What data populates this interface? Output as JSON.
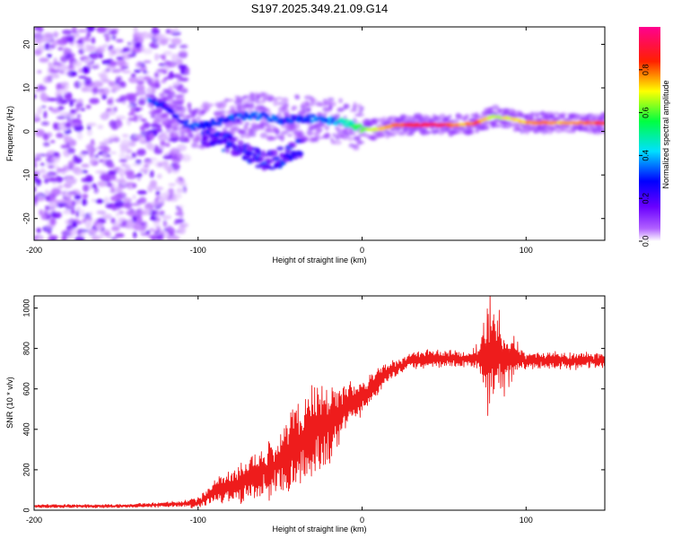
{
  "page_title": "S197.2025.349.21.09.G14",
  "chart_data": [
    {
      "type": "heatmap",
      "title": "S197.2025.349.21.09.G14",
      "xlabel": "Height of straight line (km)",
      "ylabel": "Frequency (Hz)",
      "xlim": [
        -200,
        148
      ],
      "ylim": [
        -25,
        24
      ],
      "x_ticks": [
        -200,
        -100,
        0,
        100
      ],
      "x_tick_labels": [
        "-200",
        "-100",
        "0",
        "100"
      ],
      "y_ticks": [
        -20,
        -10,
        0,
        10,
        20
      ],
      "y_tick_labels": [
        "-20",
        "-10",
        "0",
        "10",
        "20"
      ],
      "colorbar": {
        "label": "Normalized spectral amplitude",
        "range": [
          0,
          1
        ],
        "ticks": [
          0.0,
          0.2,
          0.4,
          0.6,
          0.8
        ],
        "tick_labels": [
          "0.0",
          "0.2",
          "0.4",
          "0.6",
          "0.8"
        ],
        "colors": [
          "#ffffff",
          "#7a00ff",
          "#0000ff",
          "#00ffff",
          "#00ff00",
          "#ffff00",
          "#ff0000",
          "#ff00a0"
        ]
      },
      "regions": {
        "noise_cloud": {
          "x_range": [
            -200,
            -108
          ],
          "y_range": [
            -25,
            24
          ],
          "amplitude_range": [
            0.02,
            0.12
          ]
        },
        "ridge": {
          "x": [
            -130,
            -120,
            -110,
            -100,
            -90,
            -80,
            -70,
            -60,
            -50,
            -40,
            -30,
            -20,
            -10,
            0,
            10,
            20,
            30,
            40,
            50,
            60,
            70,
            80,
            90,
            100,
            110,
            120,
            130,
            140,
            148
          ],
          "freq": [
            7,
            6,
            2,
            1,
            2,
            3,
            3.5,
            3.5,
            2.5,
            3,
            3,
            2.5,
            2,
            0.5,
            0.5,
            1.5,
            1.5,
            1.5,
            1.5,
            1.5,
            2,
            3.5,
            3,
            2,
            2,
            2,
            2,
            2,
            2
          ],
          "amplitude": [
            0.3,
            0.2,
            0.25,
            0.3,
            0.3,
            0.28,
            0.3,
            0.3,
            0.28,
            0.25,
            0.3,
            0.35,
            0.45,
            0.6,
            0.7,
            0.8,
            0.85,
            0.9,
            0.85,
            0.75,
            0.8,
            0.65,
            0.7,
            0.75,
            0.8,
            0.75,
            0.75,
            0.8,
            0.85
          ]
        },
        "lower_branch": {
          "x": [
            -95,
            -80,
            -70,
            -60,
            -50,
            -40
          ],
          "freq": [
            -1,
            -3,
            -5,
            -7,
            -6,
            -4
          ]
        }
      }
    },
    {
      "type": "line",
      "xlabel": "Height of straight line (km)",
      "ylabel": "SNR (10 * v/v)",
      "xlim": [
        -200,
        148
      ],
      "ylim": [
        0,
        1060
      ],
      "x_ticks": [
        -200,
        -100,
        0,
        100
      ],
      "x_tick_labels": [
        "-200",
        "-100",
        "0",
        "100"
      ],
      "y_ticks": [
        0,
        200,
        400,
        600,
        800,
        1000
      ],
      "y_tick_labels": [
        "0",
        "200",
        "400",
        "600",
        "800",
        "1000"
      ],
      "series": [
        {
          "name": "SNR",
          "color": "#ee1c1c",
          "x": [
            -200,
            -190,
            -180,
            -170,
            -160,
            -150,
            -140,
            -130,
            -120,
            -110,
            -100,
            -95,
            -90,
            -85,
            -80,
            -75,
            -70,
            -65,
            -60,
            -55,
            -50,
            -45,
            -40,
            -35,
            -30,
            -25,
            -20,
            -15,
            -10,
            -5,
            0,
            5,
            10,
            15,
            20,
            25,
            30,
            35,
            40,
            45,
            50,
            55,
            60,
            65,
            70,
            72,
            74,
            76,
            78,
            80,
            82,
            84,
            86,
            88,
            90,
            92,
            94,
            96,
            98,
            100,
            105,
            110,
            115,
            120,
            125,
            130,
            135,
            140,
            145,
            148
          ],
          "center": [
            20,
            20,
            20,
            20,
            20,
            20,
            22,
            25,
            28,
            30,
            35,
            60,
            100,
            110,
            120,
            130,
            145,
            170,
            190,
            210,
            240,
            280,
            320,
            350,
            380,
            420,
            440,
            460,
            520,
            540,
            560,
            600,
            640,
            680,
            700,
            720,
            740,
            745,
            750,
            750,
            750,
            750,
            750,
            750,
            750,
            750,
            750,
            760,
            780,
            760,
            760,
            760,
            750,
            750,
            760,
            760,
            750,
            760,
            740,
            740,
            740,
            740,
            740,
            740,
            740,
            740,
            740,
            740,
            740,
            740
          ],
          "spread": [
            8,
            8,
            8,
            8,
            8,
            8,
            8,
            10,
            12,
            14,
            25,
            40,
            60,
            70,
            80,
            90,
            100,
            110,
            130,
            150,
            160,
            180,
            200,
            220,
            220,
            220,
            200,
            150,
            100,
            90,
            80,
            70,
            60,
            50,
            40,
            40,
            40,
            40,
            40,
            40,
            40,
            40,
            40,
            40,
            60,
            80,
            120,
            200,
            240,
            200,
            180,
            160,
            140,
            120,
            100,
            80,
            60,
            50,
            40,
            40,
            40,
            40,
            40,
            40,
            40,
            40,
            40,
            40,
            40,
            40
          ]
        }
      ]
    }
  ]
}
